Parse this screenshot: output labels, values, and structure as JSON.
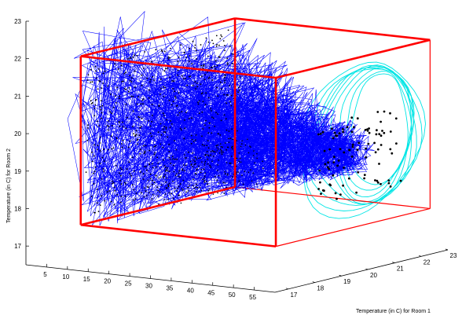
{
  "chart_data": {
    "type": "line",
    "subtype": "3d-trajectory-with-bounding-box",
    "title": "",
    "xlabel": "",
    "ylabel": "Temperature (in C) for Room 1",
    "zlabel": "Temperature (in C) for Room 2",
    "x_ticks": [
      "5",
      "10",
      "15",
      "20",
      "25",
      "30",
      "35",
      "40",
      "45",
      "50",
      "55"
    ],
    "y_ticks": [
      "17",
      "18",
      "19",
      "20",
      "21",
      "22",
      "23"
    ],
    "z_ticks": [
      "17",
      "18",
      "19",
      "20",
      "21",
      "22",
      "23"
    ],
    "xlim": [
      0,
      60
    ],
    "ylim": [
      16.5,
      23
    ],
    "zlim": [
      16.5,
      23
    ],
    "bounding_box": {
      "x": [
        10,
        57
      ],
      "y": [
        17,
        22.8
      ],
      "z": [
        17.6,
        22.1
      ]
    },
    "series": [
      {
        "mark": "line",
        "color": "#0000ff",
        "x_range": [
          7,
          57
        ],
        "y_range": [
          17,
          23
        ],
        "z_range": [
          17.3,
          23.2
        ]
      },
      {
        "mark": "point",
        "color": "#000000",
        "x_range": [
          7,
          57
        ],
        "y_range": [
          17,
          23
        ],
        "z_range": [
          17.5,
          22.5
        ]
      },
      {
        "mark": "contour",
        "plane": "x=57",
        "color": "#00e5e5",
        "levels": 9
      }
    ],
    "grid": false,
    "legend": "none",
    "colors": {
      "trajectory": "#0000ff",
      "box": "#ff0000",
      "contour": "#00e5e5",
      "points": "#000000"
    }
  }
}
